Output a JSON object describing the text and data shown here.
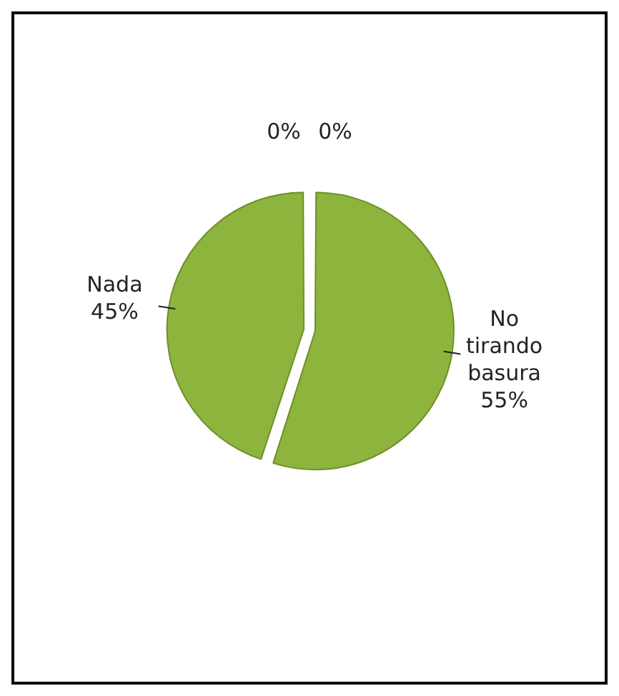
{
  "chart_data": {
    "type": "pie",
    "categories": [
      "No tirando basura",
      "Nada",
      null,
      null
    ],
    "values": [
      55,
      45,
      0,
      0
    ],
    "value_labels": [
      "55%",
      "45%",
      "0%",
      "0%"
    ],
    "colors": [
      "#8db43c",
      "#8db43c",
      "#8db43c",
      "#8db43c"
    ],
    "legend": false
  }
}
